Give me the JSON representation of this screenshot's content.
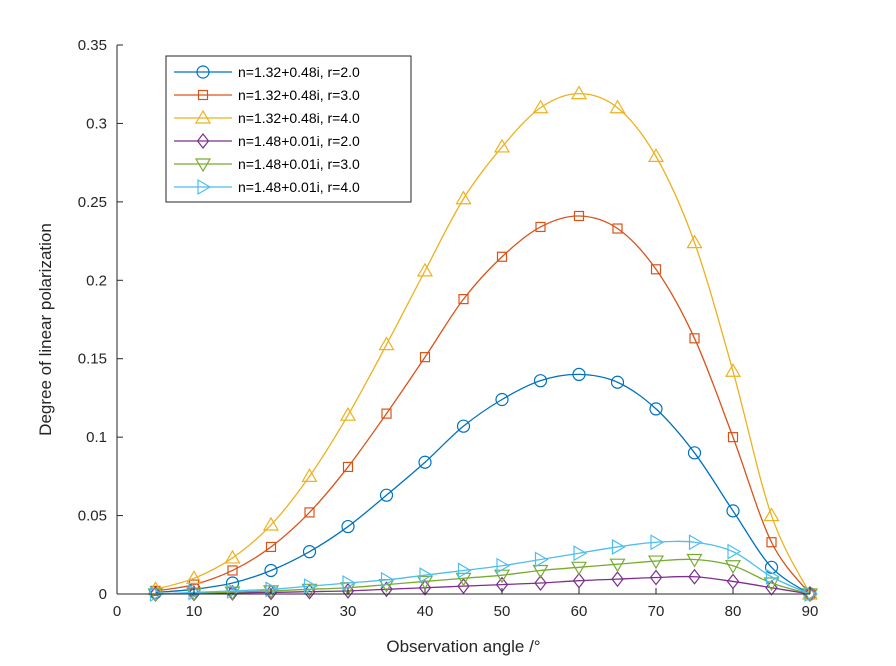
{
  "chart_data": {
    "type": "line",
    "title": "",
    "xlabel": "Observation angle /°",
    "ylabel": "Degree of linear polarization",
    "xlim": [
      0,
      90
    ],
    "ylim": [
      0,
      0.35
    ],
    "xticks": [
      0,
      10,
      20,
      30,
      40,
      50,
      60,
      70,
      80,
      90
    ],
    "yticks": [
      0,
      0.05,
      0.1,
      0.15,
      0.2,
      0.25,
      0.3,
      0.35
    ],
    "xtick_labels": [
      "0",
      "10",
      "20",
      "30",
      "40",
      "50",
      "60",
      "70",
      "80",
      "90"
    ],
    "ytick_labels": [
      "0",
      "0.05",
      "0.1",
      "0.15",
      "0.2",
      "0.25",
      "0.3",
      "0.35"
    ],
    "grid": false,
    "legend_position": "top-left",
    "x": [
      5,
      10,
      15,
      20,
      25,
      30,
      35,
      40,
      45,
      50,
      55,
      60,
      65,
      70,
      75,
      80,
      85,
      90
    ],
    "series": [
      {
        "name": "n=1.32+0.48i, r=2.0",
        "color": "#0072BD",
        "marker": "circle",
        "values": [
          0.001,
          0.003,
          0.007,
          0.015,
          0.027,
          0.043,
          0.063,
          0.084,
          0.107,
          0.124,
          0.136,
          0.14,
          0.135,
          0.118,
          0.09,
          0.053,
          0.017,
          0.0
        ]
      },
      {
        "name": "n=1.32+0.48i, r=3.0",
        "color": "#D95319",
        "marker": "square",
        "values": [
          0.002,
          0.006,
          0.015,
          0.03,
          0.052,
          0.081,
          0.115,
          0.151,
          0.188,
          0.215,
          0.234,
          0.241,
          0.233,
          0.207,
          0.163,
          0.1,
          0.033,
          0.0
        ]
      },
      {
        "name": "n=1.32+0.48i, r=4.0",
        "color": "#EDB120",
        "marker": "triangle-up",
        "values": [
          0.003,
          0.01,
          0.023,
          0.044,
          0.075,
          0.114,
          0.159,
          0.206,
          0.252,
          0.285,
          0.31,
          0.319,
          0.31,
          0.279,
          0.224,
          0.142,
          0.05,
          0.0
        ]
      },
      {
        "name": "n=1.48+0.01i, r=2.0",
        "color": "#7E2F8E",
        "marker": "diamond",
        "values": [
          0.0,
          0.0003,
          0.0007,
          0.001,
          0.0015,
          0.002,
          0.003,
          0.004,
          0.005,
          0.006,
          0.007,
          0.0085,
          0.0095,
          0.0105,
          0.011,
          0.008,
          0.004,
          0.0
        ]
      },
      {
        "name": "n=1.48+0.01i, r=3.0",
        "color": "#77AC30",
        "marker": "triangle-down",
        "values": [
          0.0,
          0.0006,
          0.0012,
          0.002,
          0.003,
          0.004,
          0.006,
          0.008,
          0.01,
          0.012,
          0.015,
          0.017,
          0.019,
          0.021,
          0.022,
          0.018,
          0.007,
          0.0
        ]
      },
      {
        "name": "n=1.48+0.01i, r=4.0",
        "color": "#4DBEEE",
        "marker": "triangle-right",
        "values": [
          0.0,
          0.001,
          0.002,
          0.003,
          0.005,
          0.007,
          0.009,
          0.012,
          0.015,
          0.018,
          0.022,
          0.026,
          0.03,
          0.033,
          0.033,
          0.027,
          0.011,
          0.0
        ]
      }
    ]
  }
}
